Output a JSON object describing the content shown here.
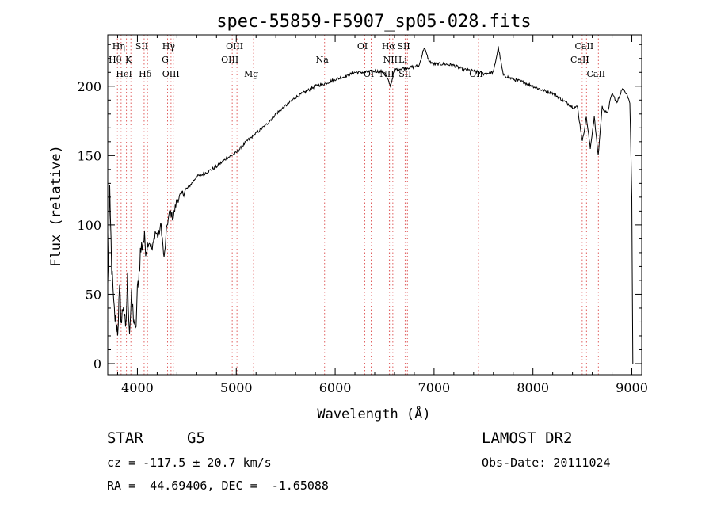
{
  "chart_data": {
    "type": "line",
    "title": "spec-55859-F5907_sp05-028.fits",
    "xlabel": "Wavelength (Å)",
    "ylabel": "Flux (relative)",
    "xlim": [
      3700,
      9100
    ],
    "ylim": [
      -8,
      237
    ],
    "xticks": [
      4000,
      5000,
      6000,
      7000,
      8000,
      9000
    ],
    "yticks": [
      0,
      50,
      100,
      150,
      200
    ],
    "grid": false,
    "series": [
      {
        "x": [
          3700,
          3720,
          3740,
          3760,
          3780,
          3800,
          3820,
          3840,
          3860,
          3880,
          3900,
          3920,
          3940,
          3960,
          3980,
          4000,
          4030,
          4060,
          4090,
          4120,
          4150,
          4180,
          4210,
          4240,
          4270,
          4300,
          4330,
          4360,
          4400,
          4450,
          4500,
          4550,
          4600,
          4650,
          4700,
          4750,
          4800,
          4850,
          4900,
          4950,
          5000,
          5100,
          5200,
          5300,
          5400,
          5500,
          5600,
          5700,
          5800,
          5900,
          6000,
          6100,
          6200,
          6300,
          6400,
          6500,
          6560,
          6600,
          6700,
          6800,
          6850,
          6900,
          6950,
          7000,
          7100,
          7200,
          7300,
          7400,
          7500,
          7600,
          7650,
          7700,
          7800,
          7900,
          8000,
          8100,
          8200,
          8300,
          8400,
          8450,
          8500,
          8540,
          8580,
          8620,
          8660,
          8700,
          8750,
          8800,
          8850,
          8900,
          8950,
          8980,
          9000,
          9010
        ],
        "y": [
          55,
          120,
          70,
          40,
          30,
          25,
          50,
          30,
          45,
          20,
          60,
          25,
          45,
          35,
          20,
          50,
          80,
          90,
          85,
          88,
          82,
          95,
          92,
          100,
          75,
          100,
          110,
          105,
          118,
          122,
          126,
          130,
          135,
          136,
          138,
          140,
          142,
          145,
          148,
          150,
          152,
          160,
          166,
          172,
          180,
          186,
          192,
          196,
          200,
          202,
          205,
          207,
          210,
          210,
          211,
          210,
          200,
          212,
          213,
          214,
          215,
          228,
          218,
          216,
          216,
          215,
          212,
          211,
          209,
          210,
          228,
          208,
          205,
          203,
          200,
          197,
          195,
          190,
          185,
          185,
          160,
          178,
          155,
          178,
          150,
          185,
          180,
          195,
          188,
          198,
          195,
          188,
          120,
          0
        ]
      }
    ],
    "line_markers": [
      {
        "label": "Hη",
        "x": 3835,
        "row": 0
      },
      {
        "label": "Hθ",
        "x": 3798,
        "row": 1
      },
      {
        "label": "K",
        "x": 3934,
        "row": 1
      },
      {
        "label": "HeI",
        "x": 3889,
        "row": 2
      },
      {
        "label": "SII",
        "x": 4068,
        "row": 0
      },
      {
        "label": "Hδ",
        "x": 4102,
        "row": 2
      },
      {
        "label": "Hγ",
        "x": 4340,
        "row": 0
      },
      {
        "label": "G",
        "x": 4305,
        "row": 1
      },
      {
        "label": "OIII",
        "x": 4363,
        "row": 2
      },
      {
        "label": "OIII",
        "x": 5007,
        "row": 0
      },
      {
        "label": "OIII",
        "x": 4959,
        "row": 1
      },
      {
        "label": "Mg",
        "x": 5175,
        "row": 2
      },
      {
        "label": "Na",
        "x": 5893,
        "row": 1
      },
      {
        "label": "OI",
        "x": 6300,
        "row": 0
      },
      {
        "label": "OI",
        "x": 6364,
        "row": 2
      },
      {
        "label": "Hα",
        "x": 6563,
        "row": 0
      },
      {
        "label": "SII",
        "x": 6717,
        "row": 0
      },
      {
        "label": "NII",
        "x": 6583,
        "row": 1
      },
      {
        "label": "Li",
        "x": 6708,
        "row": 1
      },
      {
        "label": "NII",
        "x": 6548,
        "row": 2
      },
      {
        "label": "SII",
        "x": 6731,
        "row": 2
      },
      {
        "label": "OII",
        "x": 7450,
        "row": 2
      },
      {
        "label": "CaII",
        "x": 8542,
        "row": 0
      },
      {
        "label": "CaII",
        "x": 8498,
        "row": 1
      },
      {
        "label": "CaII",
        "x": 8662,
        "row": 2
      }
    ]
  },
  "info": {
    "object_class": "STAR",
    "subclass": "G5",
    "survey": "LAMOST DR2",
    "redshift_line": "cz = -117.5 ± 20.7 km/s",
    "obs_date": "Obs-Date: 20111024",
    "coords": "RA =  44.69406, DEC =  -1.65088"
  },
  "colors": {
    "line": "#000000",
    "marker": "#e06060"
  }
}
